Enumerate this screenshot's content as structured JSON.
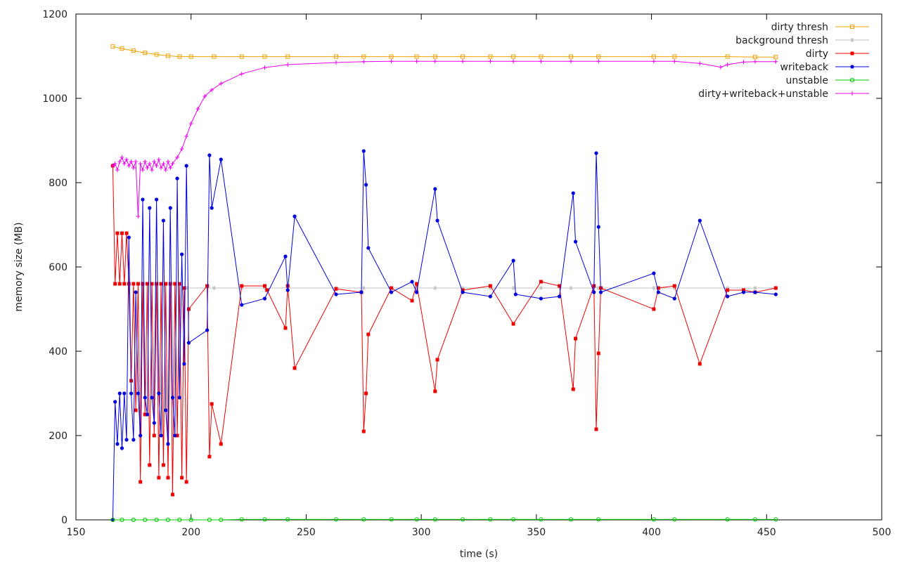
{
  "chart_data": {
    "type": "line",
    "title": "",
    "xlabel": "time (s)",
    "ylabel": "memory size (MB)",
    "xlim": [
      150,
      500
    ],
    "ylim": [
      0,
      1200
    ],
    "xticks": [
      150,
      200,
      250,
      300,
      350,
      400,
      450,
      500
    ],
    "yticks": [
      0,
      200,
      400,
      600,
      800,
      1000,
      1200
    ],
    "grid": false,
    "legend_position": "top-right",
    "series": [
      {
        "name": "dirty thresh",
        "color": "#f0a000",
        "marker": "square-open",
        "points": [
          [
            166,
            1123
          ],
          [
            170,
            1118
          ],
          [
            175,
            1113
          ],
          [
            180,
            1108
          ],
          [
            185,
            1104
          ],
          [
            190,
            1101
          ],
          [
            195,
            1099
          ],
          [
            200,
            1099
          ],
          [
            210,
            1099
          ],
          [
            222,
            1099
          ],
          [
            232,
            1099
          ],
          [
            242,
            1099
          ],
          [
            263,
            1099
          ],
          [
            275,
            1099
          ],
          [
            287,
            1099
          ],
          [
            298,
            1099
          ],
          [
            306,
            1099
          ],
          [
            318,
            1099
          ],
          [
            330,
            1099
          ],
          [
            340,
            1099
          ],
          [
            352,
            1099
          ],
          [
            365,
            1099
          ],
          [
            377,
            1099
          ],
          [
            401,
            1099
          ],
          [
            410,
            1099
          ],
          [
            433,
            1099
          ],
          [
            445,
            1098
          ],
          [
            454,
            1098
          ]
        ]
      },
      {
        "name": "background thresh",
        "color": "#c0c0c0",
        "marker": "star",
        "points": [
          [
            198,
            550
          ],
          [
            210,
            550
          ],
          [
            222,
            550
          ],
          [
            232,
            550
          ],
          [
            242,
            550
          ],
          [
            263,
            550
          ],
          [
            275,
            550
          ],
          [
            287,
            550
          ],
          [
            298,
            550
          ],
          [
            306,
            550
          ],
          [
            318,
            550
          ],
          [
            330,
            550
          ],
          [
            340,
            550
          ],
          [
            352,
            550
          ],
          [
            365,
            550
          ],
          [
            377,
            550
          ],
          [
            401,
            550
          ],
          [
            410,
            550
          ],
          [
            433,
            550
          ],
          [
            445,
            550
          ],
          [
            454,
            550
          ]
        ]
      },
      {
        "name": "dirty",
        "color": "#ee0000",
        "marker": "square",
        "points": [
          [
            166,
            840
          ],
          [
            167,
            560
          ],
          [
            168,
            680
          ],
          [
            169,
            560
          ],
          [
            170,
            680
          ],
          [
            171,
            560
          ],
          [
            172,
            680
          ],
          [
            173,
            560
          ],
          [
            174,
            330
          ],
          [
            175,
            560
          ],
          [
            176,
            260
          ],
          [
            177,
            560
          ],
          [
            178,
            90
          ],
          [
            179,
            560
          ],
          [
            180,
            250
          ],
          [
            181,
            560
          ],
          [
            182,
            130
          ],
          [
            183,
            560
          ],
          [
            184,
            200
          ],
          [
            185,
            560
          ],
          [
            186,
            100
          ],
          [
            187,
            560
          ],
          [
            188,
            130
          ],
          [
            189,
            560
          ],
          [
            190,
            100
          ],
          [
            191,
            560
          ],
          [
            192,
            60
          ],
          [
            193,
            560
          ],
          [
            194,
            200
          ],
          [
            195,
            560
          ],
          [
            196,
            100
          ],
          [
            197,
            550
          ],
          [
            198,
            90
          ],
          [
            199,
            500
          ],
          [
            207,
            555
          ],
          [
            208,
            150
          ],
          [
            209,
            275
          ],
          [
            213,
            180
          ],
          [
            222,
            555
          ],
          [
            232,
            555
          ],
          [
            233,
            545
          ],
          [
            241,
            455
          ],
          [
            242,
            555
          ],
          [
            245,
            360
          ],
          [
            263,
            548
          ],
          [
            274,
            540
          ],
          [
            275,
            210
          ],
          [
            276,
            300
          ],
          [
            277,
            440
          ],
          [
            287,
            550
          ],
          [
            296,
            520
          ],
          [
            298,
            560
          ],
          [
            306,
            305
          ],
          [
            307,
            380
          ],
          [
            318,
            545
          ],
          [
            330,
            555
          ],
          [
            340,
            465
          ],
          [
            352,
            565
          ],
          [
            360,
            555
          ],
          [
            366,
            310
          ],
          [
            367,
            430
          ],
          [
            375,
            555
          ],
          [
            376,
            215
          ],
          [
            377,
            395
          ],
          [
            378,
            550
          ],
          [
            401,
            500
          ],
          [
            403,
            550
          ],
          [
            410,
            555
          ],
          [
            421,
            370
          ],
          [
            433,
            545
          ],
          [
            440,
            545
          ],
          [
            445,
            540
          ],
          [
            454,
            550
          ]
        ]
      },
      {
        "name": "writeback",
        "color": "#0000dd",
        "marker": "circle",
        "points": [
          [
            166,
            0
          ],
          [
            167,
            280
          ],
          [
            168,
            180
          ],
          [
            169,
            300
          ],
          [
            170,
            170
          ],
          [
            171,
            300
          ],
          [
            172,
            190
          ],
          [
            173,
            670
          ],
          [
            174,
            300
          ],
          [
            175,
            190
          ],
          [
            176,
            540
          ],
          [
            177,
            300
          ],
          [
            178,
            200
          ],
          [
            179,
            760
          ],
          [
            180,
            290
          ],
          [
            181,
            250
          ],
          [
            182,
            740
          ],
          [
            183,
            290
          ],
          [
            184,
            230
          ],
          [
            185,
            760
          ],
          [
            186,
            300
          ],
          [
            187,
            200
          ],
          [
            188,
            710
          ],
          [
            189,
            260
          ],
          [
            190,
            180
          ],
          [
            191,
            740
          ],
          [
            192,
            290
          ],
          [
            193,
            200
          ],
          [
            194,
            810
          ],
          [
            195,
            290
          ],
          [
            196,
            630
          ],
          [
            197,
            370
          ],
          [
            198,
            840
          ],
          [
            199,
            420
          ],
          [
            207,
            450
          ],
          [
            208,
            865
          ],
          [
            209,
            740
          ],
          [
            213,
            855
          ],
          [
            222,
            510
          ],
          [
            232,
            525
          ],
          [
            241,
            625
          ],
          [
            242,
            545
          ],
          [
            245,
            720
          ],
          [
            263,
            535
          ],
          [
            274,
            540
          ],
          [
            275,
            875
          ],
          [
            276,
            795
          ],
          [
            277,
            645
          ],
          [
            287,
            540
          ],
          [
            296,
            565
          ],
          [
            298,
            540
          ],
          [
            306,
            785
          ],
          [
            307,
            710
          ],
          [
            318,
            540
          ],
          [
            330,
            530
          ],
          [
            340,
            615
          ],
          [
            341,
            535
          ],
          [
            352,
            525
          ],
          [
            360,
            530
          ],
          [
            366,
            775
          ],
          [
            367,
            660
          ],
          [
            375,
            540
          ],
          [
            376,
            870
          ],
          [
            377,
            695
          ],
          [
            378,
            540
          ],
          [
            401,
            585
          ],
          [
            403,
            540
          ],
          [
            410,
            525
          ],
          [
            421,
            710
          ],
          [
            433,
            530
          ],
          [
            440,
            540
          ],
          [
            445,
            540
          ],
          [
            454,
            535
          ]
        ]
      },
      {
        "name": "unstable",
        "color": "#00cc00",
        "marker": "circle-open",
        "points": [
          [
            166,
            0
          ],
          [
            170,
            0
          ],
          [
            175,
            0
          ],
          [
            180,
            0
          ],
          [
            185,
            0
          ],
          [
            190,
            0
          ],
          [
            195,
            0
          ],
          [
            200,
            0
          ],
          [
            208,
            0
          ],
          [
            213,
            0
          ],
          [
            222,
            1
          ],
          [
            232,
            1
          ],
          [
            242,
            1
          ],
          [
            263,
            1
          ],
          [
            275,
            1
          ],
          [
            287,
            1
          ],
          [
            298,
            1
          ],
          [
            306,
            1
          ],
          [
            318,
            1
          ],
          [
            330,
            1
          ],
          [
            340,
            1
          ],
          [
            352,
            1
          ],
          [
            365,
            1
          ],
          [
            377,
            1
          ],
          [
            401,
            1
          ],
          [
            410,
            1
          ],
          [
            433,
            1
          ],
          [
            445,
            1
          ],
          [
            454,
            1
          ]
        ]
      },
      {
        "name": "dirty+writeback+unstable",
        "color": "#ee00ee",
        "marker": "plus",
        "points": [
          [
            166,
            840
          ],
          [
            167,
            845
          ],
          [
            168,
            830
          ],
          [
            169,
            850
          ],
          [
            170,
            860
          ],
          [
            171,
            845
          ],
          [
            172,
            855
          ],
          [
            173,
            840
          ],
          [
            174,
            850
          ],
          [
            175,
            835
          ],
          [
            176,
            850
          ],
          [
            177,
            720
          ],
          [
            178,
            845
          ],
          [
            179,
            830
          ],
          [
            180,
            850
          ],
          [
            181,
            835
          ],
          [
            182,
            845
          ],
          [
            183,
            830
          ],
          [
            184,
            850
          ],
          [
            185,
            840
          ],
          [
            186,
            855
          ],
          [
            187,
            835
          ],
          [
            188,
            845
          ],
          [
            189,
            830
          ],
          [
            190,
            850
          ],
          [
            191,
            835
          ],
          [
            192,
            845
          ],
          [
            194,
            860
          ],
          [
            196,
            880
          ],
          [
            198,
            910
          ],
          [
            200,
            940
          ],
          [
            203,
            975
          ],
          [
            206,
            1005
          ],
          [
            209,
            1020
          ],
          [
            213,
            1035
          ],
          [
            222,
            1058
          ],
          [
            232,
            1073
          ],
          [
            242,
            1080
          ],
          [
            263,
            1085
          ],
          [
            275,
            1087
          ],
          [
            287,
            1088
          ],
          [
            298,
            1088
          ],
          [
            306,
            1088
          ],
          [
            318,
            1088
          ],
          [
            330,
            1088
          ],
          [
            340,
            1088
          ],
          [
            352,
            1088
          ],
          [
            365,
            1088
          ],
          [
            377,
            1088
          ],
          [
            401,
            1088
          ],
          [
            410,
            1088
          ],
          [
            421,
            1083
          ],
          [
            430,
            1074
          ],
          [
            433,
            1080
          ],
          [
            440,
            1086
          ],
          [
            445,
            1087
          ],
          [
            454,
            1087
          ]
        ]
      }
    ]
  }
}
